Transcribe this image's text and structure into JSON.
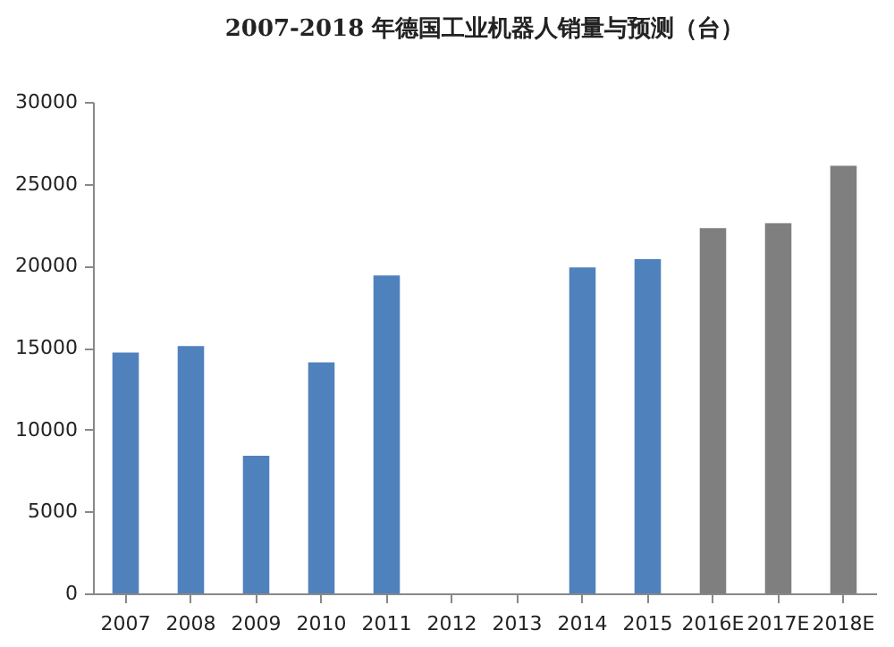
{
  "chart_data": {
    "type": "bar",
    "title": "2007-2018 年德国工业机器人销量与预测（台）",
    "categories": [
      "2007",
      "2008",
      "2009",
      "2010",
      "2011",
      "2012",
      "2013",
      "2014",
      "2015",
      "2016E",
      "2017E",
      "2018E"
    ],
    "values": [
      14700,
      15100,
      8400,
      14100,
      19400,
      null,
      null,
      19900,
      20400,
      22300,
      22600,
      26100
    ],
    "colors": [
      "#4f81bd",
      "#4f81bd",
      "#4f81bd",
      "#4f81bd",
      "#4f81bd",
      "#4f81bd",
      "#4f81bd",
      "#4f81bd",
      "#4f81bd",
      "#7f7f7f",
      "#7f7f7f",
      "#7f7f7f"
    ],
    "ylim": [
      0,
      30000
    ],
    "yticks": [
      0,
      5000,
      10000,
      15000,
      20000,
      25000,
      30000
    ],
    "grid": false
  }
}
